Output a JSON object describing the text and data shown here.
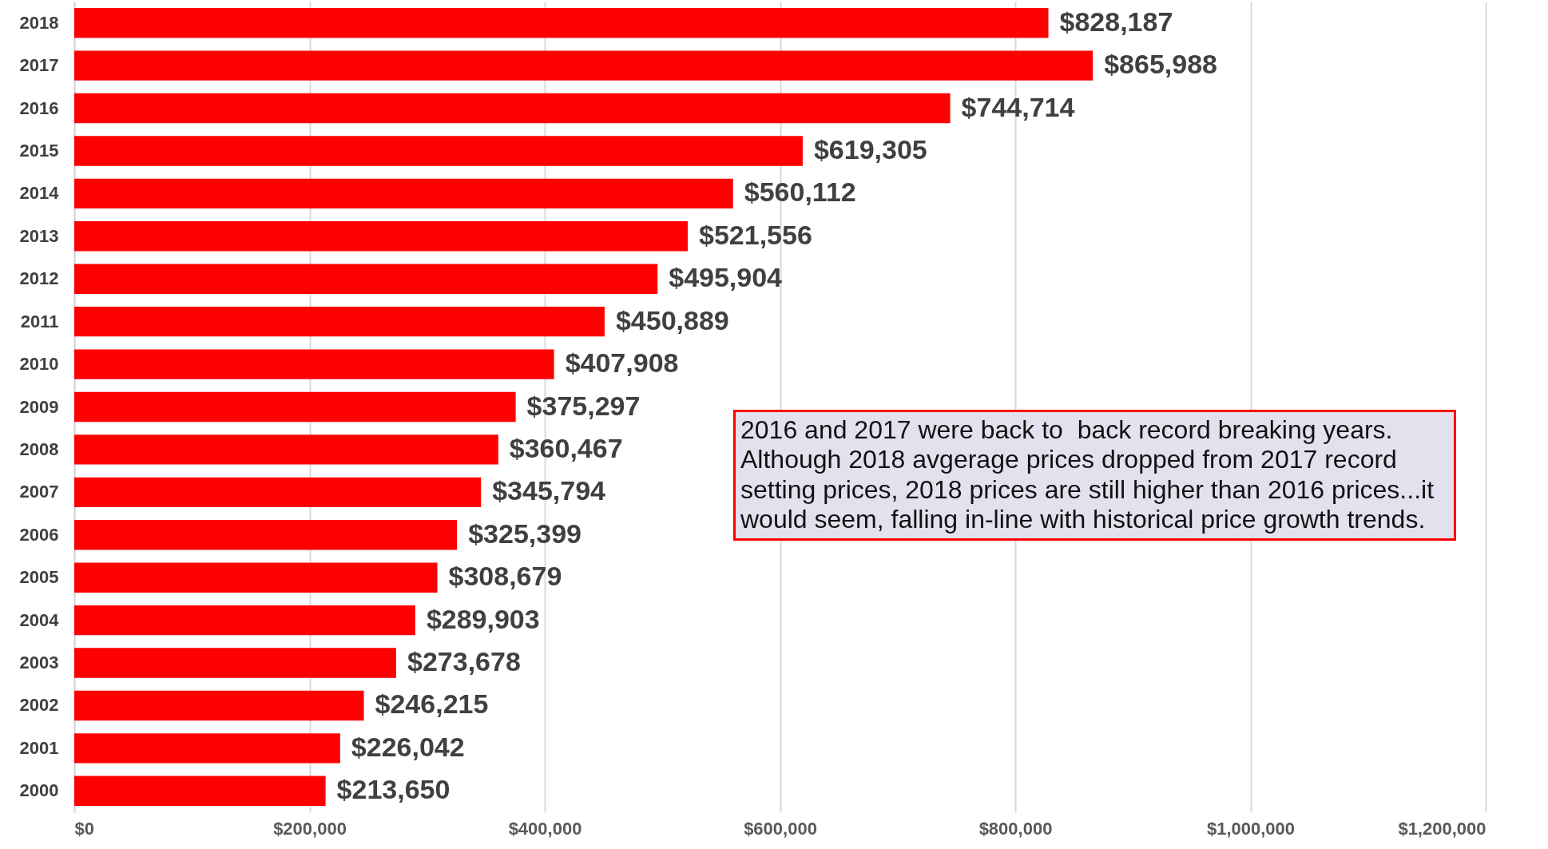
{
  "chart_data": {
    "type": "bar",
    "orientation": "horizontal",
    "categories": [
      "2018",
      "2017",
      "2016",
      "2015",
      "2014",
      "2013",
      "2012",
      "2011",
      "2010",
      "2009",
      "2008",
      "2007",
      "2006",
      "2005",
      "2004",
      "2003",
      "2002",
      "2001",
      "2000"
    ],
    "values": [
      828187,
      865988,
      744714,
      619305,
      560112,
      521556,
      495904,
      450889,
      407908,
      375297,
      360467,
      345794,
      325399,
      308679,
      289903,
      273678,
      246215,
      226042,
      213650
    ],
    "value_labels": [
      "$828,187",
      "$865,988",
      "$744,714",
      "$619,305",
      "$560,112",
      "$521,556",
      "$495,904",
      "$450,889",
      "$407,908",
      "$375,297",
      "$360,467",
      "$345,794",
      "$325,399",
      "$308,679",
      "$289,903",
      "$273,678",
      "$246,215",
      "$226,042",
      "$213,650"
    ],
    "color": "#ff0000",
    "xlim": [
      0,
      1200000
    ],
    "xticks": [
      {
        "value": 0,
        "label": "$0"
      },
      {
        "value": 200000,
        "label": "$200,000"
      },
      {
        "value": 400000,
        "label": "$400,000"
      },
      {
        "value": 600000,
        "label": "$600,000"
      },
      {
        "value": 800000,
        "label": "$800,000"
      },
      {
        "value": 1000000,
        "label": "$1,000,000"
      },
      {
        "value": 1200000,
        "label": "$1,200,000"
      }
    ],
    "grid": "x",
    "annotations": [
      "2016 and 2017 were back to  back record breaking years. Although 2018 avgerage prices dropped from 2017 record setting prices, 2018 prices are still higher than 2016 prices...it would seem, falling in-line with historical price growth trends."
    ]
  }
}
